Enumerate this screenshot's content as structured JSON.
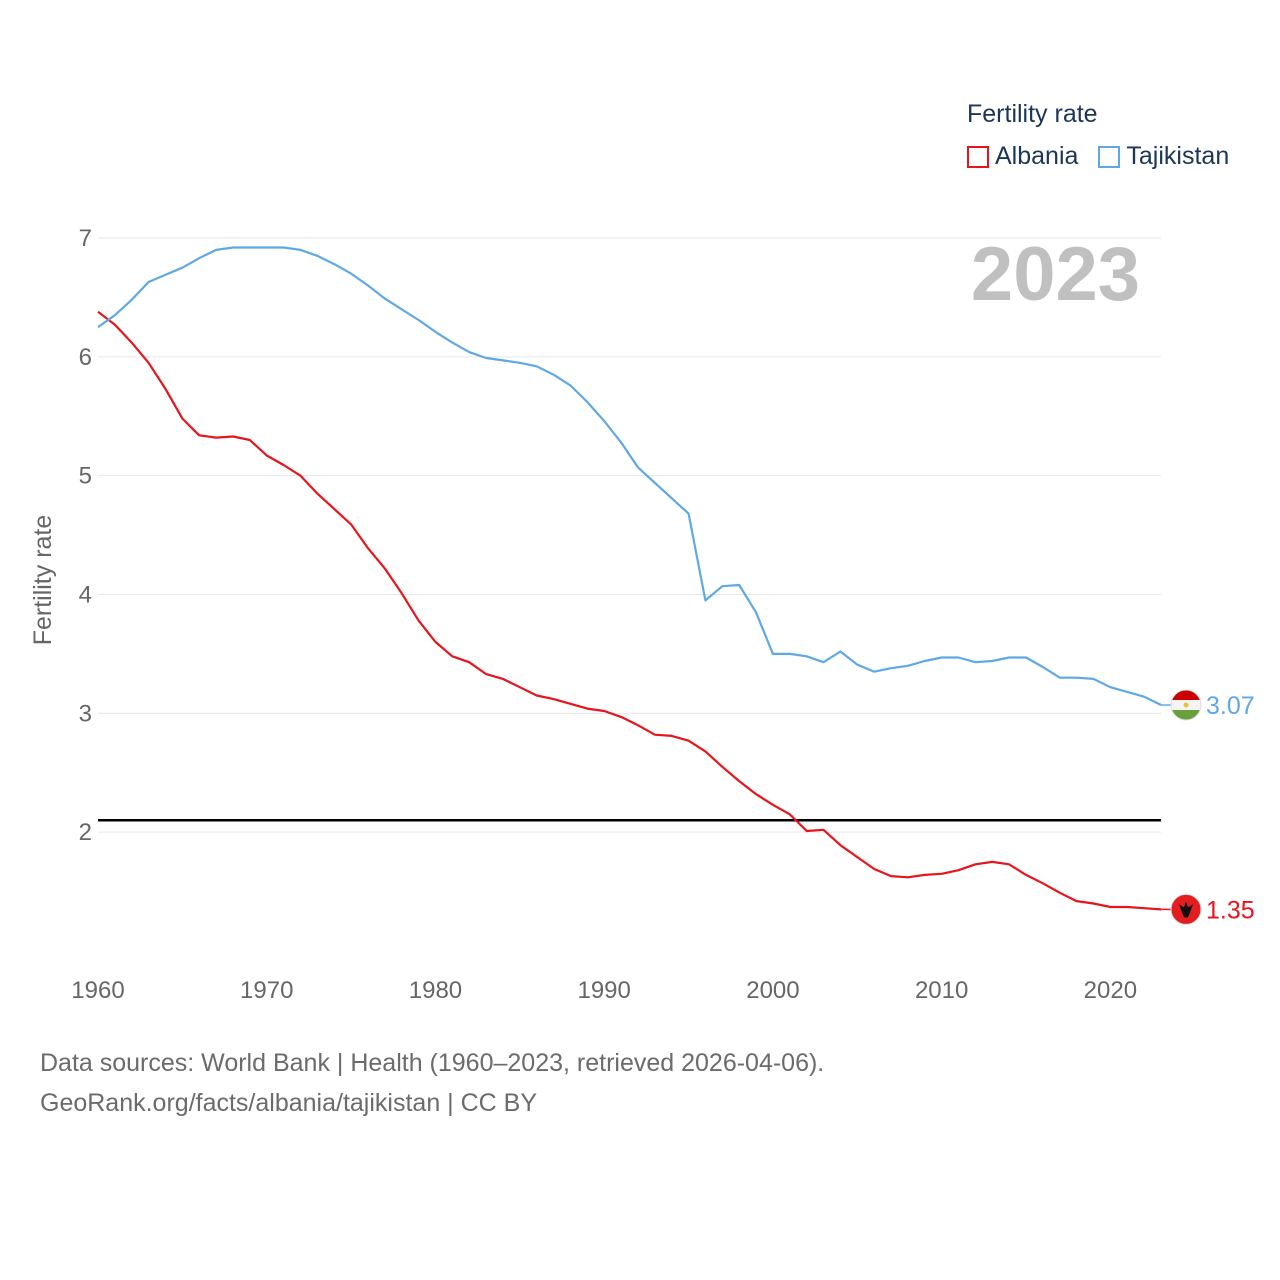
{
  "legend": {
    "title": "Fertility rate",
    "items": [
      {
        "label": "Albania",
        "color": "#e8141c"
      },
      {
        "label": "Tajikistan",
        "color": "#5fa8e6"
      }
    ]
  },
  "current_year": "2023",
  "source": {
    "line1": "Data sources: World Bank | Health (1960–2023, retrieved 2026-04-06).",
    "line2": "GeoRank.org/facts/albania/tajikistan | CC BY"
  },
  "chart_data": {
    "type": "line",
    "ylabel": "Fertility rate",
    "xlabel": "",
    "xlim": [
      1960,
      2023
    ],
    "ylim": [
      1,
      7
    ],
    "xticks": [
      1960,
      1970,
      1980,
      1990,
      2000,
      2010,
      2020
    ],
    "yticks": [
      2,
      3,
      4,
      5,
      6,
      7
    ],
    "reference_line": 2.1,
    "x": [
      1960,
      1961,
      1962,
      1963,
      1964,
      1965,
      1966,
      1967,
      1968,
      1969,
      1970,
      1971,
      1972,
      1973,
      1974,
      1975,
      1976,
      1977,
      1978,
      1979,
      1980,
      1981,
      1982,
      1983,
      1984,
      1985,
      1986,
      1987,
      1988,
      1989,
      1990,
      1991,
      1992,
      1993,
      1994,
      1995,
      1996,
      1997,
      1998,
      1999,
      2000,
      2001,
      2002,
      2003,
      2004,
      2005,
      2006,
      2007,
      2008,
      2009,
      2010,
      2011,
      2012,
      2013,
      2014,
      2015,
      2016,
      2017,
      2018,
      2019,
      2020,
      2021,
      2022,
      2023
    ],
    "series": [
      {
        "name": "Albania",
        "color": "#e8141c",
        "end_label": "1.35",
        "values": [
          6.38,
          6.27,
          6.12,
          5.95,
          5.73,
          5.48,
          5.34,
          5.32,
          5.33,
          5.3,
          5.17,
          5.09,
          5.0,
          4.85,
          4.72,
          4.59,
          4.39,
          4.22,
          4.01,
          3.78,
          3.6,
          3.48,
          3.43,
          3.33,
          3.29,
          3.22,
          3.15,
          3.12,
          3.08,
          3.04,
          3.02,
          2.97,
          2.9,
          2.82,
          2.81,
          2.77,
          2.68,
          2.55,
          2.43,
          2.32,
          2.23,
          2.15,
          2.01,
          2.02,
          1.89,
          1.79,
          1.69,
          1.63,
          1.62,
          1.64,
          1.65,
          1.68,
          1.73,
          1.75,
          1.73,
          1.64,
          1.57,
          1.49,
          1.42,
          1.4,
          1.37,
          1.37,
          1.36,
          1.35
        ]
      },
      {
        "name": "Tajikistan",
        "color": "#5fa8e6",
        "end_label": "3.07",
        "values": [
          6.25,
          6.35,
          6.48,
          6.63,
          6.69,
          6.75,
          6.83,
          6.9,
          6.92,
          6.92,
          6.92,
          6.92,
          6.9,
          6.85,
          6.78,
          6.7,
          6.6,
          6.49,
          6.4,
          6.31,
          6.21,
          6.12,
          6.04,
          5.99,
          5.97,
          5.95,
          5.92,
          5.85,
          5.76,
          5.62,
          5.46,
          5.28,
          5.07,
          4.94,
          4.81,
          4.68,
          3.95,
          4.07,
          4.08,
          3.85,
          3.5,
          3.5,
          3.48,
          3.43,
          3.52,
          3.41,
          3.35,
          3.38,
          3.4,
          3.44,
          3.47,
          3.47,
          3.43,
          3.44,
          3.47,
          3.47,
          3.39,
          3.3,
          3.3,
          3.29,
          3.22,
          3.18,
          3.14,
          3.07
        ]
      }
    ]
  }
}
